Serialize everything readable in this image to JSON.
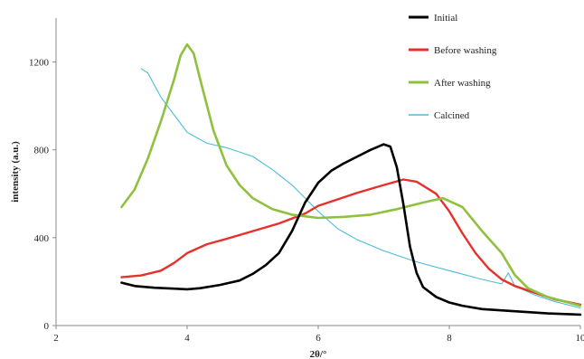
{
  "chart_data": {
    "type": "line",
    "title": "",
    "xlabel": "2θ/°",
    "ylabel": "intensity (a.u.)",
    "xlim": [
      2,
      10
    ],
    "ylim": [
      0,
      1400
    ],
    "x_ticks": [
      2,
      4,
      6,
      8,
      10
    ],
    "y_ticks": [
      0,
      400,
      800,
      1200
    ],
    "x_tick_labels": [
      "2",
      "4",
      "6",
      "8",
      "10"
    ],
    "y_tick_labels": [
      "0",
      "400",
      "800",
      "1200"
    ],
    "grid": false,
    "legend_position": "top-right",
    "series": [
      {
        "name": "Initial",
        "color": "#000000",
        "x": [
          3.0,
          3.2,
          3.5,
          3.8,
          4.0,
          4.2,
          4.5,
          4.8,
          5.0,
          5.2,
          5.4,
          5.6,
          5.8,
          6.0,
          6.2,
          6.4,
          6.6,
          6.8,
          7.0,
          7.1,
          7.2,
          7.3,
          7.4,
          7.5,
          7.6,
          7.8,
          8.0,
          8.2,
          8.5,
          9.0,
          9.5,
          10.0
        ],
        "values": [
          195,
          180,
          172,
          168,
          165,
          170,
          185,
          205,
          235,
          275,
          330,
          430,
          560,
          650,
          705,
          740,
          770,
          800,
          825,
          815,
          720,
          550,
          360,
          240,
          175,
          130,
          105,
          90,
          75,
          65,
          55,
          50
        ]
      },
      {
        "name": "Before washing",
        "color": "#e8302b",
        "x": [
          3.0,
          3.3,
          3.6,
          3.8,
          4.0,
          4.3,
          4.6,
          5.0,
          5.4,
          5.8,
          6.0,
          6.3,
          6.6,
          7.0,
          7.3,
          7.5,
          7.8,
          8.0,
          8.2,
          8.4,
          8.6,
          8.8,
          9.0,
          9.3,
          9.6,
          10.0
        ],
        "values": [
          220,
          228,
          250,
          285,
          330,
          370,
          395,
          430,
          465,
          510,
          545,
          575,
          605,
          640,
          665,
          655,
          600,
          520,
          420,
          330,
          260,
          210,
          180,
          150,
          120,
          95
        ]
      },
      {
        "name": "After washing",
        "color": "#8fc13e",
        "x": [
          3.0,
          3.2,
          3.4,
          3.6,
          3.8,
          3.9,
          4.0,
          4.1,
          4.2,
          4.4,
          4.6,
          4.8,
          5.0,
          5.3,
          5.6,
          6.0,
          6.4,
          6.8,
          7.2,
          7.6,
          7.9,
          8.2,
          8.5,
          8.8,
          9.0,
          9.2,
          9.5,
          10.0
        ],
        "values": [
          540,
          620,
          760,
          930,
          1120,
          1230,
          1280,
          1240,
          1120,
          890,
          730,
          640,
          580,
          530,
          505,
          490,
          495,
          505,
          530,
          560,
          580,
          540,
          430,
          330,
          230,
          170,
          130,
          90
        ]
      },
      {
        "name": "Calcined",
        "color": "#4bbcd8",
        "x": [
          3.3,
          3.4,
          3.6,
          3.8,
          4.0,
          4.3,
          4.6,
          5.0,
          5.3,
          5.6,
          5.8,
          6.0,
          6.3,
          6.6,
          7.0,
          7.5,
          8.0,
          8.5,
          8.8,
          8.9,
          9.0,
          9.3,
          9.6,
          10.0
        ],
        "values": [
          1170,
          1150,
          1040,
          960,
          880,
          830,
          810,
          770,
          710,
          640,
          580,
          520,
          440,
          390,
          340,
          290,
          250,
          210,
          190,
          240,
          180,
          140,
          110,
          80
        ]
      }
    ]
  }
}
